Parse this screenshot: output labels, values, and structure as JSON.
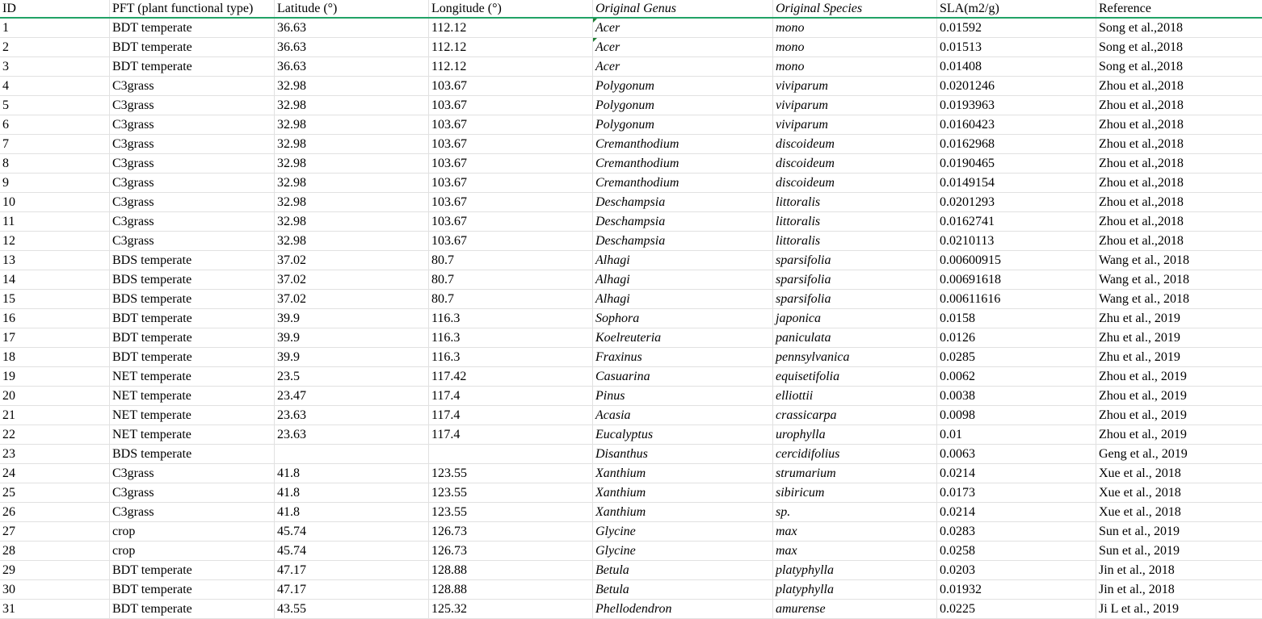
{
  "sheet": {
    "columns": [
      "ID",
      "PFT  (plant functional type)",
      "Latitude (°)",
      "Longitude (°)",
      "Original Genus",
      "Original Species",
      "SLA(m2/g)",
      "Reference"
    ],
    "italic_columns": [
      4,
      5
    ],
    "accent_color": "#21a366",
    "rows": [
      [
        "1",
        "BDT  temperate",
        "36.63",
        "112.12",
        "Acer",
        "mono",
        "0.01592",
        "Song et al.,2018"
      ],
      [
        "2",
        "BDT  temperate",
        "36.63",
        "112.12",
        "Acer",
        "mono",
        "0.01513",
        "Song et al.,2018"
      ],
      [
        "3",
        "BDT  temperate",
        "36.63",
        "112.12",
        "Acer",
        "mono",
        "0.01408",
        "Song et al.,2018"
      ],
      [
        "4",
        "C3grass",
        "32.98",
        "103.67",
        "Polygonum",
        "viviparum",
        "0.0201246",
        "Zhou et al.,2018"
      ],
      [
        "5",
        "C3grass",
        "32.98",
        "103.67",
        "Polygonum",
        "viviparum",
        "0.0193963",
        "Zhou et al.,2018"
      ],
      [
        "6",
        "C3grass",
        "32.98",
        "103.67",
        "Polygonum",
        "viviparum",
        "0.0160423",
        "Zhou et al.,2018"
      ],
      [
        "7",
        "C3grass",
        "32.98",
        "103.67",
        "Cremanthodium",
        "discoideum",
        "0.0162968",
        "Zhou et al.,2018"
      ],
      [
        "8",
        "C3grass",
        "32.98",
        "103.67",
        "Cremanthodium",
        "discoideum",
        "0.0190465",
        "Zhou et al.,2018"
      ],
      [
        "9",
        "C3grass",
        "32.98",
        "103.67",
        "Cremanthodium",
        "discoideum",
        "0.0149154",
        "Zhou et al.,2018"
      ],
      [
        "10",
        "C3grass",
        "32.98",
        "103.67",
        "Deschampsia",
        "littoralis",
        "0.0201293",
        "Zhou et al.,2018"
      ],
      [
        "11",
        "C3grass",
        "32.98",
        "103.67",
        "Deschampsia",
        "littoralis",
        "0.0162741",
        "Zhou et al.,2018"
      ],
      [
        "12",
        "C3grass",
        "32.98",
        "103.67",
        "Deschampsia",
        "littoralis",
        "0.0210113",
        "Zhou et al.,2018"
      ],
      [
        "13",
        "BDS temperate",
        "37.02",
        "80.7",
        "Alhagi",
        "sparsifolia",
        "0.00600915",
        "Wang et al., 2018"
      ],
      [
        "14",
        "BDS temperate",
        "37.02",
        "80.7",
        "Alhagi",
        "sparsifolia",
        "0.00691618",
        "Wang et al., 2018"
      ],
      [
        "15",
        "BDS temperate",
        "37.02",
        "80.7",
        "Alhagi",
        "sparsifolia",
        "0.00611616",
        "Wang et al., 2018"
      ],
      [
        "16",
        "BDT temperate",
        "39.9",
        "116.3",
        "Sophora",
        "japonica",
        "0.0158",
        "Zhu et al., 2019"
      ],
      [
        "17",
        "BDT temperate",
        "39.9",
        "116.3",
        "Koelreuteria",
        "paniculata",
        "0.0126",
        "Zhu et al., 2019"
      ],
      [
        "18",
        "BDT temperate",
        "39.9",
        "116.3",
        "Fraxinus",
        "pennsylvanica",
        "0.0285",
        "Zhu et al., 2019"
      ],
      [
        "19",
        "NET temperate",
        "23.5",
        "117.42",
        "Casuarina",
        "equisetifolia",
        "0.0062",
        "Zhou et al., 2019"
      ],
      [
        "20",
        "NET temperate",
        "23.47",
        "117.4",
        "Pinus",
        "elliottii",
        "0.0038",
        "Zhou et al., 2019"
      ],
      [
        "21",
        "NET temperate",
        "23.63",
        "117.4",
        "Acasia",
        "crassicarpa",
        "0.0098",
        "Zhou et al., 2019"
      ],
      [
        "22",
        "NET temperate",
        "23.63",
        "117.4",
        "Eucalyptus",
        "urophylla",
        "0.01",
        "Zhou et al., 2019"
      ],
      [
        "23",
        "BDS temperate",
        "",
        "",
        "Disanthus",
        "cercidifolius",
        "0.0063",
        "Geng et al., 2019"
      ],
      [
        "24",
        "C3grass",
        "41.8",
        "123.55",
        "Xanthium",
        "strumarium",
        "0.0214",
        "Xue et al., 2018"
      ],
      [
        "25",
        "C3grass",
        "41.8",
        "123.55",
        "Xanthium",
        "sibiricum",
        "0.0173",
        "Xue et al., 2018"
      ],
      [
        "26",
        "C3grass",
        "41.8",
        "123.55",
        "Xanthium",
        "sp.",
        "0.0214",
        "Xue et al., 2018"
      ],
      [
        "27",
        "crop",
        "45.74",
        "126.73",
        "Glycine",
        "max",
        "0.0283",
        "Sun et al., 2019"
      ],
      [
        "28",
        "crop",
        "45.74",
        "126.73",
        "Glycine",
        "max",
        "0.0258",
        "Sun et al., 2019"
      ],
      [
        "29",
        "BDT temperate",
        "47.17",
        "128.88",
        "Betula",
        "platyphylla",
        "0.0203",
        "Jin et al., 2018"
      ],
      [
        "30",
        "BDT temperate",
        "47.17",
        "128.88",
        "Betula",
        "platyphylla",
        "0.01932",
        "Jin et al., 2018"
      ],
      [
        "31",
        "BDT temperate",
        "43.55",
        "125.32",
        "Phellodendron",
        "amurense",
        "0.0225",
        "Ji L et al., 2019"
      ]
    ]
  }
}
